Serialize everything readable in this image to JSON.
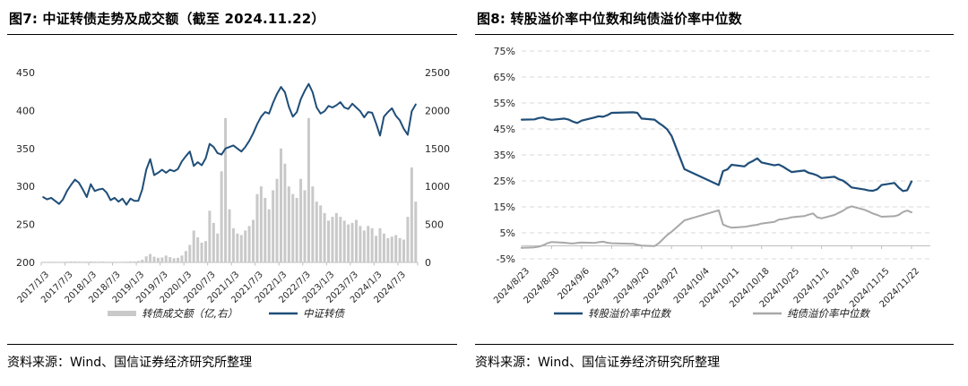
{
  "figure7": {
    "title": "图7: 中证转债走势及成交额（截至 2024.11.22）",
    "source": "资料来源：Wind、国信证券经济研究所整理",
    "colors": {
      "line": "#1F4E79",
      "bar": "#C9C9C9",
      "axis": "#BFBFBF",
      "tick_text": "#262626"
    },
    "legend": [
      {
        "label": "转债成交额（亿,右）",
        "type": "bar"
      },
      {
        "label": "中证转债",
        "type": "line"
      }
    ],
    "chart_data": {
      "type": "line+bar",
      "title": "中证转债走势及成交额（截至 2024.11.22）",
      "left_axis": {
        "min": 200,
        "max": 450,
        "ticks": [
          450,
          400,
          350,
          300,
          250,
          200
        ]
      },
      "right_axis": {
        "min": 0,
        "max": 2500,
        "ticks": [
          2500,
          2000,
          1500,
          1000,
          500,
          0
        ]
      },
      "x_tick_labels": [
        "2017/1/3",
        "2017/7/3",
        "2018/1/3",
        "2018/7/3",
        "2019/1/3",
        "2019/7/3",
        "2020/1/3",
        "2020/7/3",
        "2021/1/3",
        "2021/7/3",
        "2022/1/3",
        "2022/7/3",
        "2023/1/3",
        "2023/7/3",
        "2024/1/3",
        "2024/7/3"
      ],
      "categories": [
        "2017/1",
        "2017/2",
        "2017/3",
        "2017/4",
        "2017/5",
        "2017/6",
        "2017/7",
        "2017/8",
        "2017/9",
        "2017/10",
        "2017/11",
        "2017/12",
        "2018/1",
        "2018/2",
        "2018/3",
        "2018/4",
        "2018/5",
        "2018/6",
        "2018/7",
        "2018/8",
        "2018/9",
        "2018/10",
        "2018/11",
        "2018/12",
        "2019/1",
        "2019/2",
        "2019/3",
        "2019/4",
        "2019/5",
        "2019/6",
        "2019/7",
        "2019/8",
        "2019/9",
        "2019/10",
        "2019/11",
        "2019/12",
        "2020/1",
        "2020/2",
        "2020/3",
        "2020/4",
        "2020/5",
        "2020/6",
        "2020/7",
        "2020/8",
        "2020/9",
        "2020/10",
        "2020/11",
        "2020/12",
        "2021/1",
        "2021/2",
        "2021/3",
        "2021/4",
        "2021/5",
        "2021/6",
        "2021/7",
        "2021/8",
        "2021/9",
        "2021/10",
        "2021/11",
        "2021/12",
        "2022/1",
        "2022/2",
        "2022/3",
        "2022/4",
        "2022/5",
        "2022/6",
        "2022/7",
        "2022/8",
        "2022/9",
        "2022/10",
        "2022/11",
        "2022/12",
        "2023/1",
        "2023/2",
        "2023/3",
        "2023/4",
        "2023/5",
        "2023/6",
        "2023/7",
        "2023/8",
        "2023/9",
        "2023/10",
        "2023/11",
        "2023/12",
        "2024/1",
        "2024/2",
        "2024/3",
        "2024/4",
        "2024/5",
        "2024/6",
        "2024/7",
        "2024/8",
        "2024/9",
        "2024/10",
        "2024/11"
      ],
      "series": [
        {
          "name": "中证转债",
          "axis": "left",
          "type": "line",
          "values": [
            286,
            283,
            285,
            281,
            277,
            283,
            294,
            302,
            309,
            305,
            296,
            286,
            303,
            294,
            296,
            297,
            292,
            282,
            285,
            280,
            284,
            276,
            284,
            281,
            281,
            296,
            322,
            336,
            315,
            318,
            322,
            318,
            322,
            320,
            323,
            333,
            340,
            346,
            327,
            332,
            328,
            337,
            356,
            352,
            344,
            342,
            350,
            352,
            354,
            350,
            346,
            352,
            360,
            370,
            382,
            392,
            398,
            396,
            410,
            422,
            431,
            424,
            405,
            392,
            398,
            415,
            426,
            435,
            424,
            404,
            396,
            399,
            406,
            404,
            407,
            411,
            404,
            402,
            409,
            404,
            399,
            391,
            398,
            397,
            383,
            367,
            392,
            398,
            403,
            393,
            387,
            376,
            368,
            399,
            408
          ]
        },
        {
          "name": "转债成交额（亿,右）",
          "axis": "right",
          "type": "bar",
          "values": [
            8,
            7,
            9,
            8,
            7,
            8,
            10,
            12,
            12,
            10,
            9,
            10,
            12,
            10,
            10,
            11,
            9,
            8,
            9,
            8,
            9,
            10,
            13,
            12,
            20,
            35,
            80,
            110,
            75,
            60,
            65,
            90,
            70,
            55,
            60,
            90,
            150,
            230,
            420,
            330,
            260,
            280,
            680,
            520,
            380,
            1200,
            1900,
            700,
            450,
            380,
            360,
            420,
            480,
            560,
            900,
            1000,
            850,
            700,
            950,
            1100,
            1500,
            1300,
            1000,
            900,
            850,
            1100,
            950,
            1900,
            1000,
            800,
            750,
            650,
            550,
            600,
            650,
            600,
            550,
            500,
            520,
            560,
            480,
            420,
            480,
            450,
            350,
            450,
            380,
            320,
            340,
            360,
            320,
            300,
            600,
            1250,
            800
          ]
        }
      ]
    }
  },
  "figure8": {
    "title": "图8: 转股溢价率中位数和纯债溢价率中位数",
    "source": "资料来源：Wind、国信证券经济研究所整理",
    "colors": {
      "conv": "#1F4E79",
      "pure": "#A8A8A8",
      "grid": "#D9D9D9",
      "axis": "#BFBFBF",
      "tick_text": "#262626"
    },
    "legend": [
      {
        "label": "转股溢价率中位数",
        "type": "line"
      },
      {
        "label": "纯债溢价率中位数",
        "type": "line"
      }
    ],
    "chart_data": {
      "type": "line",
      "title": "转股溢价率中位数和纯债溢价率中位数",
      "y_axis": {
        "min": -5,
        "max": 75,
        "ticks": [
          "75%",
          "65%",
          "55%",
          "45%",
          "35%",
          "25%",
          "15%",
          "5%",
          "-5%"
        ],
        "tick_values": [
          75,
          65,
          55,
          45,
          35,
          25,
          15,
          5,
          -5
        ]
      },
      "x_tick_labels": [
        "2024/8/23",
        "2024/8/30",
        "2024/9/6",
        "2024/9/13",
        "2024/9/20",
        "2024/9/27",
        "2024/10/4",
        "2024/10/11",
        "2024/10/18",
        "2024/10/25",
        "2024/11/1",
        "2024/11/8",
        "2024/11/15",
        "2024/11/22"
      ],
      "x": [
        "2024/8/23",
        "2024/8/26",
        "2024/8/27",
        "2024/8/28",
        "2024/8/29",
        "2024/8/30",
        "2024/9/2",
        "2024/9/3",
        "2024/9/4",
        "2024/9/5",
        "2024/9/6",
        "2024/9/9",
        "2024/9/10",
        "2024/9/11",
        "2024/9/12",
        "2024/9/13",
        "2024/9/18",
        "2024/9/19",
        "2024/9/20",
        "2024/9/23",
        "2024/9/24",
        "2024/9/25",
        "2024/9/26",
        "2024/9/27",
        "2024/9/30",
        "2024/10/8",
        "2024/10/9",
        "2024/10/10",
        "2024/10/11",
        "2024/10/14",
        "2024/10/15",
        "2024/10/16",
        "2024/10/17",
        "2024/10/18",
        "2024/10/21",
        "2024/10/22",
        "2024/10/23",
        "2024/10/24",
        "2024/10/25",
        "2024/10/28",
        "2024/10/29",
        "2024/10/30",
        "2024/10/31",
        "2024/11/1",
        "2024/11/4",
        "2024/11/5",
        "2024/11/6",
        "2024/11/7",
        "2024/11/8",
        "2024/11/11",
        "2024/11/12",
        "2024/11/13",
        "2024/11/14",
        "2024/11/15",
        "2024/11/18",
        "2024/11/19",
        "2024/11/20",
        "2024/11/21",
        "2024/11/22"
      ],
      "series": [
        {
          "name": "转股溢价率中位数",
          "values": [
            48.6,
            48.7,
            49.2,
            49.4,
            48.8,
            48.5,
            49.0,
            48.6,
            47.8,
            47.3,
            48.2,
            49.4,
            49.9,
            49.7,
            50.3,
            51.2,
            51.4,
            51.2,
            49.0,
            48.6,
            47.3,
            46.2,
            44.8,
            42.3,
            29.5,
            23.4,
            28.8,
            29.4,
            31.2,
            30.6,
            31.9,
            32.7,
            33.7,
            32.1,
            31.0,
            31.3,
            30.5,
            29.4,
            28.4,
            29.0,
            28.1,
            27.7,
            27.1,
            26.1,
            26.6,
            25.7,
            25.1,
            23.9,
            22.5,
            21.7,
            21.3,
            21.2,
            21.8,
            23.4,
            24.2,
            22.4,
            21.1,
            21.4,
            24.8
          ]
        },
        {
          "name": "纯债溢价率中位数",
          "values": [
            -0.8,
            -0.6,
            -0.3,
            0.2,
            1.0,
            1.5,
            1.2,
            1.0,
            0.9,
            1.1,
            1.3,
            1.1,
            1.4,
            1.6,
            1.2,
            1.0,
            0.8,
            0.4,
            0.1,
            -0.1,
            1.0,
            2.6,
            4.2,
            5.4,
            9.8,
            13.7,
            8.2,
            7.5,
            7.0,
            7.3,
            7.6,
            7.9,
            8.1,
            8.6,
            9.2,
            10.1,
            10.3,
            10.6,
            11.0,
            11.5,
            12.0,
            12.5,
            11.0,
            10.6,
            11.9,
            12.7,
            13.5,
            14.6,
            15.2,
            13.9,
            13.2,
            12.4,
            11.9,
            11.2,
            11.4,
            11.9,
            13.0,
            13.6,
            12.9
          ]
        }
      ]
    }
  }
}
